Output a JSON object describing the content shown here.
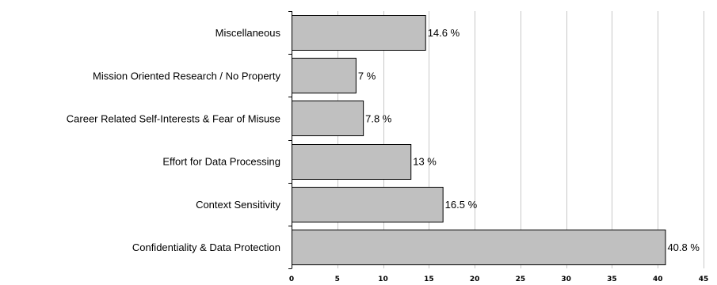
{
  "chart_data": {
    "type": "bar",
    "orientation": "horizontal",
    "title": "",
    "xlabel": "",
    "ylabel": "",
    "categories": [
      "Miscellaneous",
      "Mission Oriented Research / No Property",
      "Career Related Self-Interests & Fear of Misuse",
      "Effort for Data Processing",
      "Context Sensitivity",
      "Confidentiality & Data Protection"
    ],
    "values": [
      14.6,
      7,
      7.8,
      13,
      16.5,
      40.8
    ],
    "value_labels": [
      "14.6 %",
      "7 %",
      "7.8 %",
      "13 %",
      "16.5 %",
      "40.8 %"
    ],
    "xlim": [
      0,
      45
    ],
    "xticks": [
      0,
      5,
      10,
      15,
      20,
      25,
      30,
      35,
      40,
      45
    ],
    "xtick_labels": [
      "0",
      "5",
      "10",
      "15",
      "20",
      "25",
      "30",
      "35",
      "40",
      "45"
    ],
    "grid": "vertical",
    "legend": "none",
    "colors": {
      "bar_fill": "#c0c0c0",
      "bar_stroke": "#000000",
      "grid": "#c8c8c8",
      "axis": "#000000",
      "background": "#ffffff"
    }
  }
}
